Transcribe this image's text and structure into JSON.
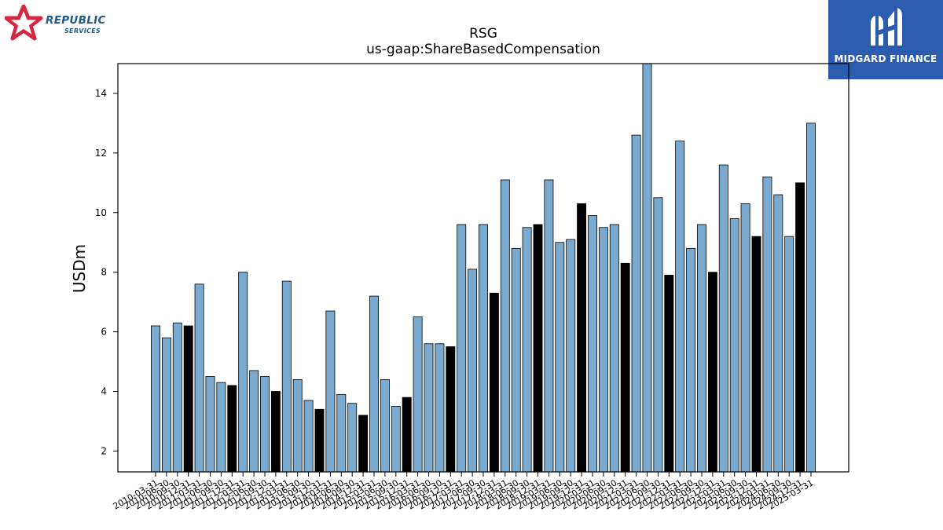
{
  "logos": {
    "left": {
      "name": "REPUBLIC",
      "sub": "SERVICES"
    },
    "right": {
      "name": "MIDGARD FINANCE"
    }
  },
  "colors": {
    "bar_light": "#7aaad0",
    "bar_dark": "#000000",
    "axis": "#000000"
  },
  "chart_data": {
    "type": "bar",
    "title": "RSG",
    "subtitle": "us-gaap:ShareBasedCompensation",
    "xlabel": "",
    "ylabel": "USDm",
    "ylim": [
      1.3,
      15
    ],
    "yticks": [
      2,
      4,
      6,
      8,
      10,
      12,
      14
    ],
    "grid": false,
    "categories": [
      "2010-03-31",
      "2010-06-30",
      "2010-09-30",
      "2010-12-31",
      "2011-03-31",
      "2011-06-30",
      "2011-09-30",
      "2011-12-31",
      "2012-03-31",
      "2012-06-30",
      "2012-09-30",
      "2012-12-31",
      "2013-03-31",
      "2013-06-30",
      "2013-09-30",
      "2013-12-31",
      "2014-03-31",
      "2014-06-30",
      "2014-09-30",
      "2014-12-31",
      "2015-03-31",
      "2015-06-30",
      "2015-09-30",
      "2015-12-31",
      "2016-03-31",
      "2016-06-30",
      "2016-09-30",
      "2016-12-31",
      "2017-03-31",
      "2017-06-30",
      "2017-09-30",
      "2017-12-31",
      "2018-03-31",
      "2018-06-30",
      "2018-09-30",
      "2018-12-31",
      "2019-03-31",
      "2019-06-30",
      "2019-09-30",
      "2019-12-31",
      "2020-03-31",
      "2020-06-30",
      "2020-09-30",
      "2020-12-31",
      "2021-03-31",
      "2021-06-30",
      "2021-09-30",
      "2021-12-31",
      "2022-03-31",
      "2022-06-30",
      "2022-09-30",
      "2022-12-31",
      "2023-03-31",
      "2023-06-30",
      "2023-09-30",
      "2023-12-31",
      "2024-03-31",
      "2024-06-30",
      "2024-09-30",
      "2024-12-31",
      "2025-03-31"
    ],
    "values": [
      6.2,
      5.8,
      6.3,
      6.2,
      7.6,
      4.5,
      4.3,
      4.2,
      8.0,
      4.7,
      4.5,
      4.0,
      7.7,
      4.4,
      3.7,
      3.4,
      6.7,
      3.9,
      3.6,
      3.2,
      7.2,
      4.4,
      3.5,
      3.8,
      6.5,
      5.6,
      5.6,
      5.5,
      9.6,
      8.1,
      9.6,
      7.3,
      11.1,
      8.8,
      9.5,
      9.6,
      11.1,
      9.0,
      9.1,
      10.3,
      9.9,
      9.5,
      9.6,
      8.3,
      12.6,
      15.0,
      10.5,
      7.9,
      12.4,
      8.8,
      9.6,
      8.0,
      11.6,
      9.8,
      10.3,
      9.2,
      11.2,
      10.6,
      9.2,
      11.0,
      13.0
    ],
    "highlight": "bars for quarters ending 12-31 are drawn in black"
  }
}
